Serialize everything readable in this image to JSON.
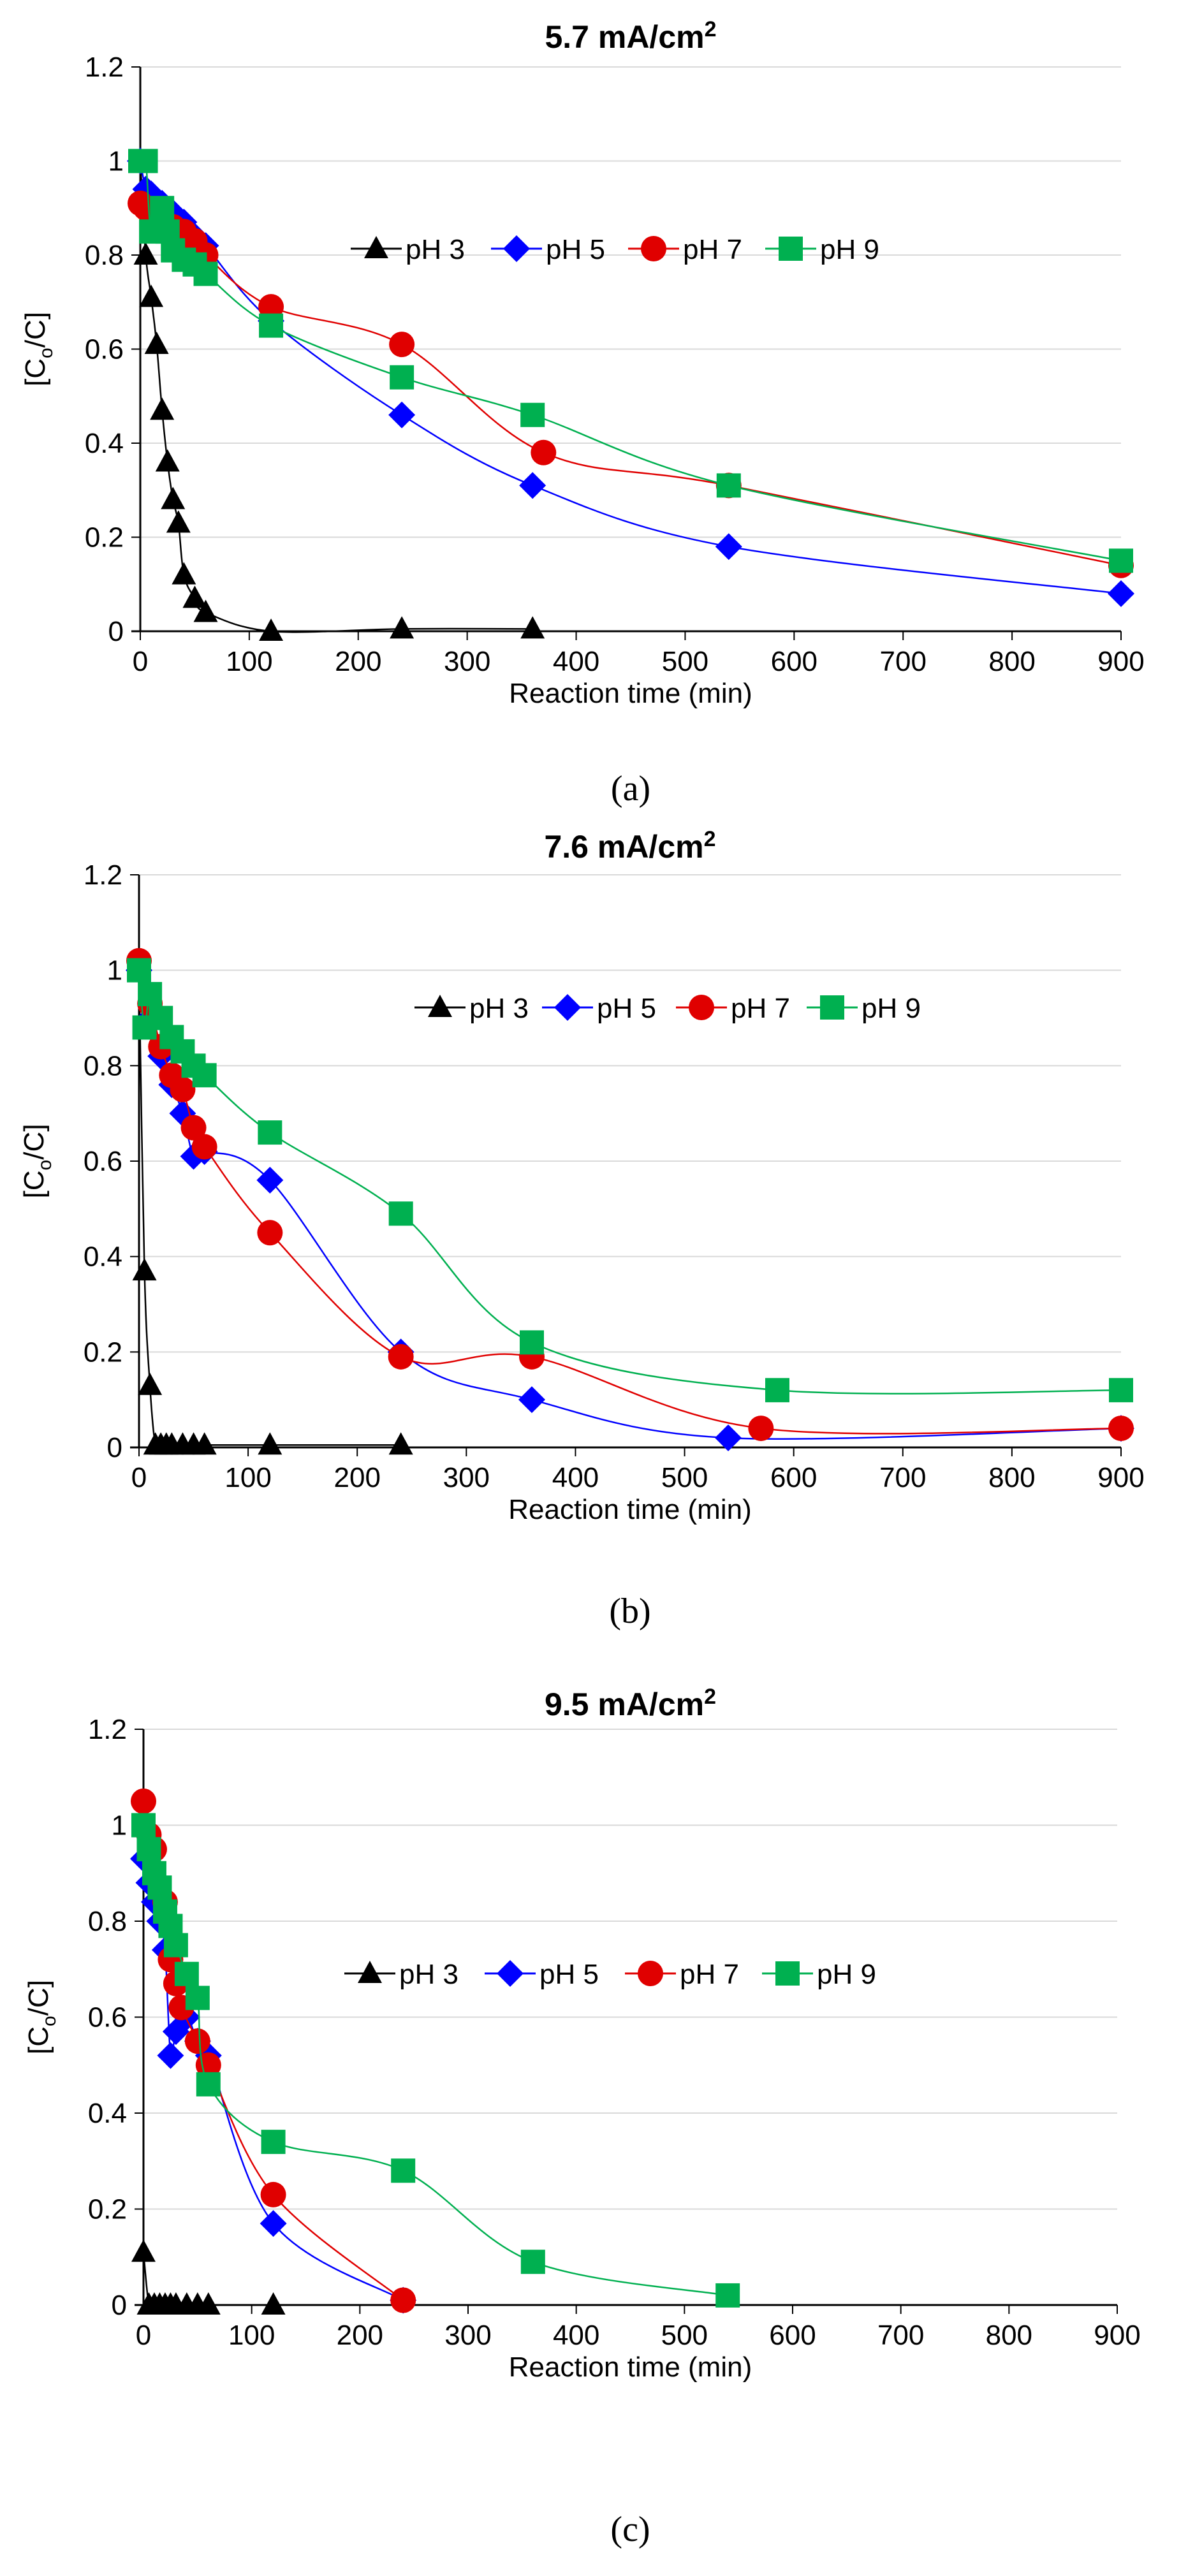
{
  "chart_data": [
    {
      "type": "line",
      "title": "5.7 mA/cm2",
      "title_main": "5.7 mA/cm",
      "title_sup": "2",
      "caption": "(a)",
      "xlabel": "Reaction time (min)",
      "ylabel": "[Co/C]",
      "ylabel_main": "[C",
      "ylabel_sub": "o",
      "ylabel_end": "/C]",
      "xlim": [
        0,
        900
      ],
      "ylim": [
        0,
        1.2
      ],
      "xticks": [
        "0",
        "100",
        "200",
        "300",
        "400",
        "500",
        "600",
        "700",
        "800",
        "900"
      ],
      "yticks": [
        "0",
        "0.2",
        "0.4",
        "0.6",
        "0.8",
        "1",
        "1.2"
      ],
      "grid": "horizontal",
      "legend": "top-right",
      "series": [
        {
          "name": "pH 3",
          "color": "#000000",
          "marker": "triangle",
          "x": [
            0,
            5,
            10,
            15,
            20,
            25,
            30,
            35,
            40,
            50,
            60,
            120,
            240,
            360
          ],
          "y": [
            1.0,
            0.8,
            0.71,
            0.61,
            0.47,
            0.36,
            0.28,
            0.23,
            0.12,
            0.07,
            0.04,
            0.0,
            0.005,
            0.005
          ]
        },
        {
          "name": "pH 5",
          "color": "#0000ff",
          "marker": "diamond",
          "x": [
            0,
            5,
            10,
            20,
            30,
            40,
            50,
            60,
            120,
            240,
            360,
            540,
            900
          ],
          "y": [
            1.0,
            0.94,
            0.93,
            0.91,
            0.89,
            0.87,
            0.84,
            0.82,
            0.66,
            0.46,
            0.31,
            0.18,
            0.08
          ]
        },
        {
          "name": "pH 7",
          "color": "#e00000",
          "marker": "circle",
          "x": [
            0,
            5,
            10,
            20,
            30,
            40,
            50,
            60,
            120,
            240,
            370,
            540,
            900
          ],
          "y": [
            0.91,
            0.9,
            0.89,
            0.88,
            0.86,
            0.85,
            0.83,
            0.8,
            0.69,
            0.61,
            0.38,
            0.31,
            0.14
          ]
        },
        {
          "name": "pH 9",
          "color": "#00b050",
          "marker": "square",
          "x": [
            0,
            5,
            10,
            20,
            25,
            30,
            40,
            50,
            60,
            120,
            240,
            360,
            540,
            900
          ],
          "y": [
            1.0,
            1.0,
            0.85,
            0.9,
            0.85,
            0.81,
            0.79,
            0.78,
            0.76,
            0.65,
            0.54,
            0.46,
            0.31,
            0.15
          ]
        }
      ]
    },
    {
      "type": "line",
      "title": "7.6 mA/cm2",
      "title_main": "7.6 mA/cm",
      "title_sup": "2",
      "caption": "(b)",
      "xlabel": "Reaction time (min)",
      "ylabel": "[Co/C]",
      "ylabel_main": "[C",
      "ylabel_sub": "o",
      "ylabel_end": "/C]",
      "xlim": [
        0,
        900
      ],
      "ylim": [
        0,
        1.2
      ],
      "xticks": [
        "0",
        "100",
        "200",
        "300",
        "400",
        "500",
        "600",
        "700",
        "800",
        "900"
      ],
      "yticks": [
        "0",
        "0.2",
        "0.4",
        "0.6",
        "0.8",
        "1",
        "1.2"
      ],
      "grid": "horizontal",
      "legend": "center-right",
      "series": [
        {
          "name": "pH 3",
          "color": "#000000",
          "marker": "triangle",
          "x": [
            0,
            5,
            10,
            15,
            20,
            25,
            30,
            40,
            50,
            60,
            120,
            240
          ],
          "y": [
            1.0,
            0.37,
            0.13,
            0.005,
            0.005,
            0.005,
            0.005,
            0.005,
            0.005,
            0.005,
            0.005,
            0.005
          ]
        },
        {
          "name": "pH 5",
          "color": "#0000ff",
          "marker": "diamond",
          "x": [
            0,
            10,
            20,
            30,
            40,
            50,
            60,
            120,
            240,
            360,
            540,
            900
          ],
          "y": [
            1.0,
            0.9,
            0.82,
            0.76,
            0.7,
            0.61,
            0.62,
            0.56,
            0.2,
            0.1,
            0.02,
            0.04
          ]
        },
        {
          "name": "pH 7",
          "color": "#e00000",
          "marker": "circle",
          "x": [
            0,
            10,
            20,
            30,
            40,
            50,
            60,
            120,
            240,
            360,
            570,
            900
          ],
          "y": [
            1.02,
            0.93,
            0.84,
            0.78,
            0.75,
            0.67,
            0.63,
            0.45,
            0.19,
            0.19,
            0.04,
            0.04
          ]
        },
        {
          "name": "pH 9",
          "color": "#00b050",
          "marker": "square",
          "x": [
            0,
            5,
            10,
            20,
            30,
            40,
            50,
            60,
            120,
            240,
            360,
            585,
            900
          ],
          "y": [
            1.0,
            0.88,
            0.95,
            0.9,
            0.86,
            0.83,
            0.8,
            0.78,
            0.66,
            0.49,
            0.22,
            0.12,
            0.12
          ]
        }
      ]
    },
    {
      "type": "line",
      "title": "9.5 mA/cm2",
      "title_main": "9.5 mA/cm",
      "title_sup": "2",
      "caption": "(c)",
      "xlabel": "Reaction time (min)",
      "ylabel": "[Co/C]",
      "ylabel_main": "[C",
      "ylabel_sub": "o",
      "ylabel_end": "/C]",
      "xlim": [
        0,
        900
      ],
      "ylim": [
        0,
        1.2
      ],
      "xticks": [
        "0",
        "100",
        "200",
        "300",
        "400",
        "500",
        "600",
        "700",
        "800",
        "900"
      ],
      "yticks": [
        "0",
        "0.2",
        "0.4",
        "0.6",
        "0.8",
        "1",
        "1.2"
      ],
      "grid": "horizontal",
      "legend": "center-right",
      "series": [
        {
          "name": "pH 3",
          "color": "#000000",
          "marker": "triangle",
          "x": [
            0,
            5,
            10,
            15,
            20,
            25,
            30,
            40,
            50,
            60,
            120
          ],
          "y": [
            0.11,
            0.0,
            0.0,
            0.0,
            0.0,
            0.0,
            0.0,
            0.0,
            0.0,
            0.0,
            0.0
          ]
        },
        {
          "name": "pH 5",
          "color": "#0000ff",
          "marker": "diamond",
          "x": [
            0,
            5,
            10,
            15,
            20,
            25,
            30,
            40,
            50,
            60,
            120,
            240
          ],
          "y": [
            0.93,
            0.88,
            0.84,
            0.8,
            0.74,
            0.52,
            0.57,
            0.6,
            0.55,
            0.52,
            0.17,
            0.01
          ]
        },
        {
          "name": "pH 7",
          "color": "#e00000",
          "marker": "circle",
          "x": [
            0,
            5,
            10,
            20,
            25,
            30,
            35,
            50,
            60,
            120,
            240
          ],
          "y": [
            1.05,
            0.98,
            0.95,
            0.84,
            0.72,
            0.67,
            0.62,
            0.55,
            0.5,
            0.23,
            0.01
          ]
        },
        {
          "name": "pH 9",
          "color": "#00b050",
          "marker": "square",
          "x": [
            0,
            5,
            10,
            15,
            20,
            25,
            30,
            40,
            50,
            60,
            120,
            240,
            360,
            540
          ],
          "y": [
            1.0,
            0.95,
            0.9,
            0.87,
            0.82,
            0.79,
            0.75,
            0.69,
            0.64,
            0.46,
            0.34,
            0.28,
            0.09,
            0.02
          ]
        }
      ]
    }
  ]
}
